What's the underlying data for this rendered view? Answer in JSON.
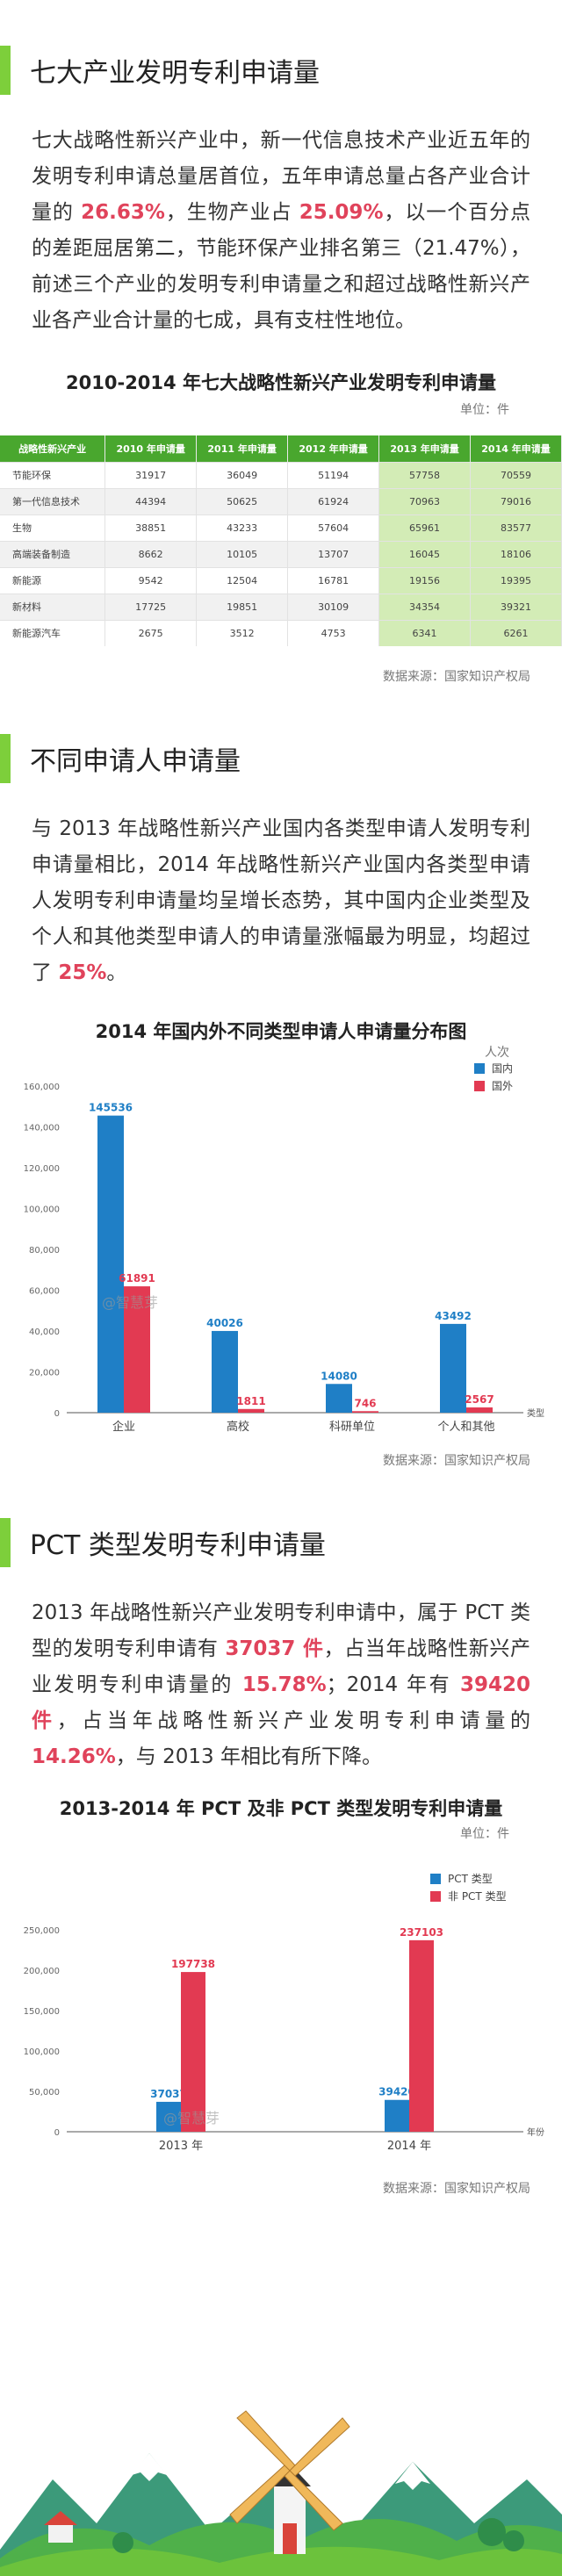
{
  "sections": {
    "s1": {
      "title": "七大产业发明专利申请量",
      "para": [
        {
          "t": "七大战略性新兴产业中，新一代信息技术产业近五年的发明专利申请总量居首位，五年申请总量占各产业合计量的 "
        },
        {
          "t": "26.63%",
          "hl": true
        },
        {
          "t": "，生物产业占 "
        },
        {
          "t": "25.09%",
          "hl": true
        },
        {
          "t": "，以一个百分点的差距屈居第二，节能环保产业排名第三（21.47%），前述三个产业的发明专利申请量之和超过战略性新兴产业各产业合计量的七成，具有支柱性地位。"
        }
      ]
    },
    "s2": {
      "title": "不同申请人申请量",
      "para": [
        {
          "t": "与 2013 年战略性新兴产业国内各类型申请人发明专利申请量相比，2014 年战略性新兴产业国内各类型申请人发明专利申请量均呈增长态势，其中国内企业类型及个人和其他类型申请人的申请量涨幅最为明显，均超过了 "
        },
        {
          "t": "25%",
          "hl": true
        },
        {
          "t": "。"
        }
      ]
    },
    "s3": {
      "title": "PCT 类型发明专利申请量",
      "para": [
        {
          "t": "2013 年战略性新兴产业发明专利申请中，属于 PCT 类型的发明专利申请有 "
        },
        {
          "t": "37037 件",
          "hl": true
        },
        {
          "t": "，占当年战略性新兴产业发明专利申请量的 "
        },
        {
          "t": "15.78%",
          "hl": true
        },
        {
          "t": "；2014 年有 "
        },
        {
          "t": "39420 件",
          "hl": true
        },
        {
          "t": "，占当年战略性新兴产业发明专利申请量的 "
        },
        {
          "t": "14.26%",
          "hl": true
        },
        {
          "t": "，与 2013 年相比有所下降。"
        }
      ]
    }
  },
  "table": {
    "title": "2010-2014 年七大战略性新兴产业发明专利申请量",
    "unit": "单位：件",
    "headers": [
      "战略性新兴产业",
      "2010 年申请量",
      "2011 年申请量",
      "2012 年申请量",
      "2013 年申请量",
      "2014 年申请量"
    ],
    "rows": [
      [
        "节能环保",
        "31917",
        "36049",
        "51194",
        "57758",
        "70559"
      ],
      [
        "第一代信息技术",
        "44394",
        "50625",
        "61924",
        "70963",
        "79016"
      ],
      [
        "生物",
        "38851",
        "43233",
        "57604",
        "65961",
        "83577"
      ],
      [
        "高端装备制造",
        "8662",
        "10105",
        "13707",
        "16045",
        "18106"
      ],
      [
        "新能源",
        "9542",
        "12504",
        "16781",
        "19156",
        "19395"
      ],
      [
        "新材料",
        "17725",
        "19851",
        "30109",
        "34354",
        "39321"
      ],
      [
        "新能源汽车",
        "2675",
        "3512",
        "4753",
        "6341",
        "6261"
      ]
    ],
    "source": "数据来源：国家知识产权局"
  },
  "watermark": "@智慧芽",
  "chart_data": [
    {
      "type": "bar",
      "title": "2014 年国内外不同类型申请人申请量分布图",
      "unit": "人次",
      "categories": [
        "企业",
        "高校",
        "科研单位",
        "个人和其他"
      ],
      "xlabel": "类型",
      "ylim": [
        0,
        160000
      ],
      "yticks": [
        "0",
        "20,000",
        "40,000",
        "60,000",
        "80,000",
        "100,000",
        "120,000",
        "140,000",
        "160,000"
      ],
      "legend_position": "top-right",
      "series": [
        {
          "name": "国内",
          "color": "#1f7fc6",
          "values": [
            145536,
            40026,
            14080,
            43492
          ]
        },
        {
          "name": "国外",
          "color": "#e23a52",
          "values": [
            61891,
            1811,
            746,
            2567
          ]
        }
      ],
      "source": "数据来源：国家知识产权局"
    },
    {
      "type": "bar",
      "title": "2013-2014 年 PCT 及非 PCT 类型发明专利申请量",
      "unit": "单位：件",
      "categories": [
        "2013 年",
        "2014 年"
      ],
      "xlabel": "年份",
      "ylim": [
        0,
        250000
      ],
      "yticks": [
        "0",
        "50,000",
        "100,000",
        "150,000",
        "200,000",
        "250,000"
      ],
      "legend_position": "top-right",
      "series": [
        {
          "name": "PCT 类型",
          "color": "#1f7fc6",
          "values": [
            37037,
            39420
          ]
        },
        {
          "name": "非 PCT 类型",
          "color": "#e23a52",
          "values": [
            197738,
            237103
          ]
        }
      ],
      "source": "数据来源：国家知识产权局"
    }
  ],
  "colors": {
    "accent": "#7dcf3b",
    "highlight": "#e0435b",
    "table_header": "#49a72e",
    "table_hi": "#d3ecb6"
  }
}
